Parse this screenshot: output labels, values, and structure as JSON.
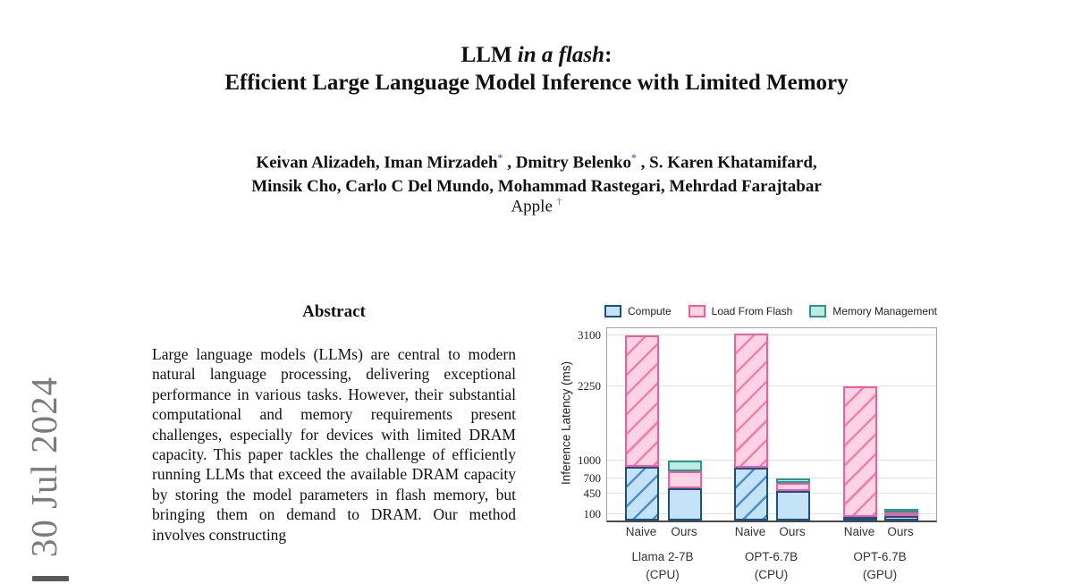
{
  "watermark": {
    "text": "30 Jul 2024"
  },
  "header": {
    "title_plain": "LLM ",
    "title_italic": "in a flash",
    "title_colon": ":",
    "title_line2": "Efficient Large Language Model Inference with Limited Memory",
    "authors_line1_a": "Keivan Alizadeh, Iman Mirzadeh",
    "star1": "*",
    "authors_line1_b": " , Dmitry Belenko",
    "star2": "*",
    "authors_line1_c": " , S. Karen Khatamifard,",
    "authors_line2": "Minsik Cho, Carlo C Del Mundo, Mohammad Rastegari, Mehrdad Farajtabar",
    "affiliation": "Apple ",
    "dagger": "†"
  },
  "abstract": {
    "heading": "Abstract",
    "body": "Large language models (LLMs) are central to modern natural language processing, delivering exceptional performance in various tasks. However, their substantial computational and memory requirements present challenges, especially for devices with limited DRAM capacity. This paper tackles the challenge of efficiently running LLMs that exceed the available DRAM capacity by storing the model parameters in flash memory, but bringing them on demand to DRAM. Our method involves constructing"
  },
  "chart_data": {
    "type": "bar",
    "stacked": true,
    "ylabel": "Inference Latency (ms)",
    "yticks": [
      100,
      450,
      700,
      1000,
      2250,
      3100
    ],
    "ylim": [
      0,
      3225
    ],
    "grid": true,
    "legend_position": "top",
    "legend": [
      "Compute",
      "Load From Flash",
      "Memory Management"
    ],
    "series_keys": [
      "compute",
      "load_from_flash",
      "memory_management"
    ],
    "groups": [
      {
        "label_line1": "Llama 2-7B",
        "label_line2": "(CPU)",
        "bars": [
          {
            "name": "Naive",
            "hatched": true,
            "compute": 905,
            "load_from_flash": 2195,
            "memory_management": 0
          },
          {
            "name": "Ours",
            "hatched": false,
            "compute": 540,
            "load_from_flash": 290,
            "memory_management": 170
          }
        ]
      },
      {
        "label_line1": "OPT-6.7B",
        "label_line2": "(CPU)",
        "bars": [
          {
            "name": "Naive",
            "hatched": true,
            "compute": 890,
            "load_from_flash": 2245,
            "memory_management": 0
          },
          {
            "name": "Ours",
            "hatched": false,
            "compute": 495,
            "load_from_flash": 135,
            "memory_management": 70
          }
        ]
      },
      {
        "label_line1": "OPT-6.7B",
        "label_line2": "(GPU)",
        "bars": [
          {
            "name": "Naive",
            "hatched": true,
            "compute": 60,
            "load_from_flash": 2190,
            "memory_management": 0
          },
          {
            "name": "Ours",
            "hatched": false,
            "compute": 70,
            "load_from_flash": 60,
            "memory_management": 55
          }
        ]
      }
    ],
    "colors": {
      "compute_fill": "#c5e3f7",
      "compute_stroke": "#1d4f87",
      "compute_hatch": "#4f8fc8",
      "flash_fill": "#fbd3e4",
      "flash_stroke": "#ee5f9e",
      "flash_hatch": "#f17fb2",
      "memory_fill": "#bfeae4",
      "memory_stroke": "#27988e",
      "memory_hatch": "#5fbfb4",
      "grid": "#e2e2e2",
      "note_accent": "#6a6ad0",
      "watermark_gray": "#7b7b7b"
    }
  }
}
